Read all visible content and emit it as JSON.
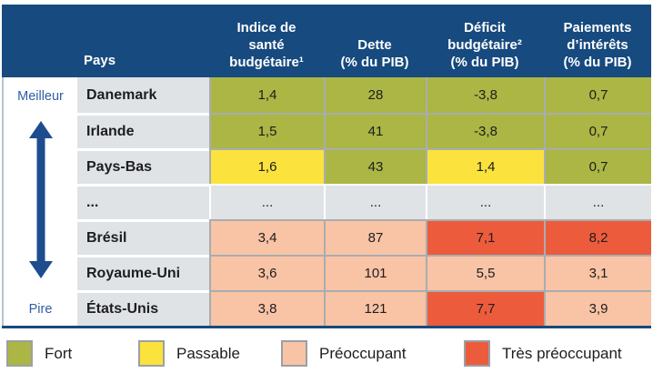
{
  "colors": {
    "header_bg": "#174a7e",
    "fort": "#abb644",
    "passable": "#fbe23d",
    "preoccupant": "#f9c3a5",
    "tres_preoccupant": "#ed5b3d",
    "row_bg": "#e0e3e6",
    "sep": "#a8adb0",
    "arrow": "#1d4d8f",
    "axis_text": "#2f5da6"
  },
  "axis": {
    "best": "Meilleur",
    "worst": "Pire"
  },
  "table": {
    "columns": [
      {
        "label": "Pays"
      },
      {
        "label": "Indice de\nsanté\nbudgétaire¹"
      },
      {
        "label": "Dette\n(% du PIB)"
      },
      {
        "label": "Déficit\nbudgétaire²\n(% du PIB)"
      },
      {
        "label": "Paiements\nd’intérêts\n(% du PIB)"
      }
    ],
    "rows": [
      {
        "country": "Danemark",
        "cells": [
          {
            "value": "1,4",
            "status": "fort"
          },
          {
            "value": "28",
            "status": "fort"
          },
          {
            "value": "-3,8",
            "status": "fort"
          },
          {
            "value": "0,7",
            "status": "fort"
          }
        ]
      },
      {
        "country": "Irlande",
        "cells": [
          {
            "value": "1,5",
            "status": "fort"
          },
          {
            "value": "41",
            "status": "fort"
          },
          {
            "value": "-3,8",
            "status": "fort"
          },
          {
            "value": "0,7",
            "status": "fort"
          }
        ]
      },
      {
        "country": "Pays-Bas",
        "cells": [
          {
            "value": "1,6",
            "status": "passable"
          },
          {
            "value": "43",
            "status": "fort"
          },
          {
            "value": "1,4",
            "status": "passable"
          },
          {
            "value": "0,7",
            "status": "fort"
          }
        ]
      },
      {
        "country": "...",
        "cells": [
          {
            "value": "...",
            "status": "none"
          },
          {
            "value": "...",
            "status": "none"
          },
          {
            "value": "...",
            "status": "none"
          },
          {
            "value": "...",
            "status": "none"
          }
        ]
      },
      {
        "country": "Brésil",
        "cells": [
          {
            "value": "3,4",
            "status": "preoccupant"
          },
          {
            "value": "87",
            "status": "preoccupant"
          },
          {
            "value": "7,1",
            "status": "tres-preoccupant"
          },
          {
            "value": "8,2",
            "status": "tres-preoccupant"
          }
        ]
      },
      {
        "country": "Royaume-Uni",
        "cells": [
          {
            "value": "3,6",
            "status": "preoccupant"
          },
          {
            "value": "101",
            "status": "preoccupant"
          },
          {
            "value": "5,5",
            "status": "preoccupant"
          },
          {
            "value": "3,1",
            "status": "preoccupant"
          }
        ]
      },
      {
        "country": "États-Unis",
        "cells": [
          {
            "value": "3,8",
            "status": "preoccupant"
          },
          {
            "value": "121",
            "status": "preoccupant"
          },
          {
            "value": "7,7",
            "status": "tres-preoccupant"
          },
          {
            "value": "3,9",
            "status": "preoccupant"
          }
        ]
      }
    ]
  },
  "legend": [
    {
      "label": "Fort",
      "status": "fort"
    },
    {
      "label": "Passable",
      "status": "passable"
    },
    {
      "label": "Préoccupant",
      "status": "preoccupant"
    },
    {
      "label": "Très préoccupant",
      "status": "tres-preoccupant"
    }
  ],
  "chart_data": {
    "type": "table",
    "columns": [
      "Pays",
      "Indice de santé budgétaire¹",
      "Dette (% du PIB)",
      "Déficit budgétaire² (% du PIB)",
      "Paiements d’intérêts (% du PIB)"
    ],
    "rows": [
      [
        "Danemark",
        1.4,
        28,
        -3.8,
        0.7
      ],
      [
        "Irlande",
        1.5,
        41,
        -3.8,
        0.7
      ],
      [
        "Pays-Bas",
        1.6,
        43,
        1.4,
        0.7
      ],
      [
        "...",
        "...",
        "...",
        "...",
        "..."
      ],
      [
        "Brésil",
        3.4,
        87,
        7.1,
        8.2
      ],
      [
        "Royaume-Uni",
        3.6,
        101,
        5.5,
        3.1
      ],
      [
        "États-Unis",
        3.8,
        121,
        7.7,
        3.9
      ]
    ],
    "cell_ratings": [
      [
        "fort",
        "fort",
        "fort",
        "fort"
      ],
      [
        "fort",
        "fort",
        "fort",
        "fort"
      ],
      [
        "passable",
        "fort",
        "passable",
        "fort"
      ],
      [
        "none",
        "none",
        "none",
        "none"
      ],
      [
        "preoccupant",
        "preoccupant",
        "tres-preoccupant",
        "tres-preoccupant"
      ],
      [
        "preoccupant",
        "preoccupant",
        "preoccupant",
        "preoccupant"
      ],
      [
        "preoccupant",
        "preoccupant",
        "tres-preoccupant",
        "preoccupant"
      ]
    ],
    "ranking_axis": {
      "top": "Meilleur",
      "bottom": "Pire"
    },
    "legend": [
      "Fort",
      "Passable",
      "Préoccupant",
      "Très préoccupant"
    ],
    "legend_position": "bottom"
  }
}
